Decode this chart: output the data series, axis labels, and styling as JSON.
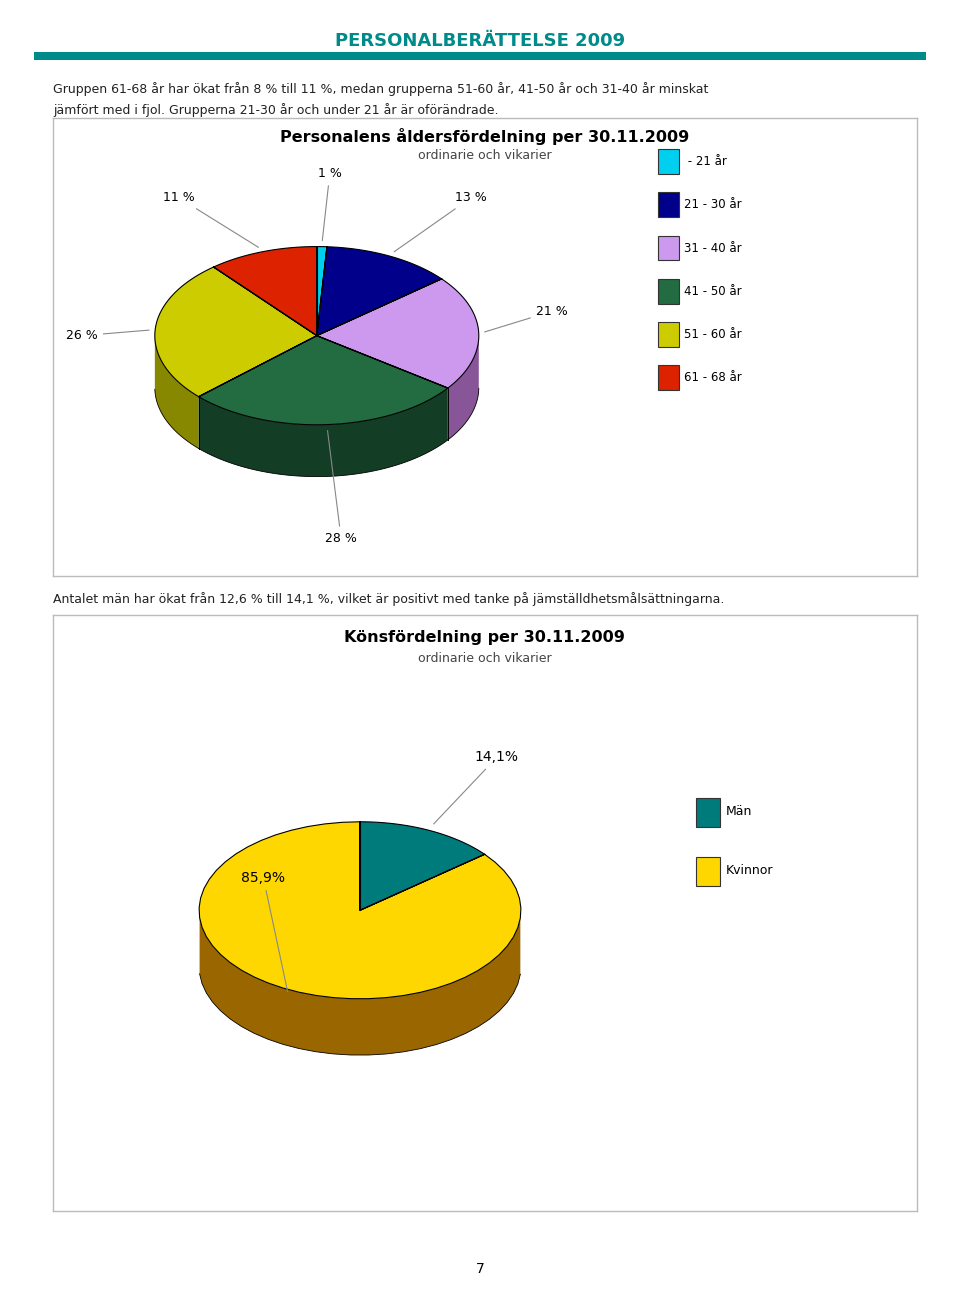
{
  "page_title": "PERSONALBERÄTTELSE 2009",
  "page_title_color": "#008B8B",
  "divider_color": "#008B8B",
  "text1_line1": "Gruppen 61-68 år har ökat från 8 % till 11 %, medan grupperna 51-60 år, 41-50 år och 31-40 år minskat",
  "text1_line2": "jämfört med i fjol. Grupperna 21-30 år och under 21 år är oförändrade.",
  "text2": "Antalet män har ökat från 12,6 % till 14,1 %, vilket är positivt med tanke på jämställdhetsmålsättningarna.",
  "footer_text": "7",
  "pie1_title": "Personalens åldersfördelning per 30.11.2009",
  "pie1_subtitle": "ordinarie och vikarier",
  "pie1_values": [
    1,
    13,
    21,
    28,
    26,
    11
  ],
  "pie1_labels": [
    "1 %",
    "13 %",
    "21 %",
    "28 %",
    "26 %",
    "11 %"
  ],
  "pie1_colors_top": [
    "#00CFEF",
    "#00008B",
    "#CC99EE",
    "#236B41",
    "#CCCC00",
    "#DD2200"
  ],
  "pie1_colors_side": [
    "#007799",
    "#000044",
    "#885599",
    "#143D25",
    "#888800",
    "#991100"
  ],
  "pie1_legend_labels": [
    " - 21 år",
    "21 - 30 år",
    "31 - 40 år",
    "41 - 50 år",
    "51 - 60 år",
    "61 - 68 år"
  ],
  "pie1_legend_colors": [
    "#00CFEF",
    "#00008B",
    "#CC99EE",
    "#236B41",
    "#CCCC00",
    "#DD2200"
  ],
  "pie2_title": "Könsfördelning per 30.11.2009",
  "pie2_subtitle": "ordinarie och vikarier",
  "pie2_values": [
    14.1,
    85.9
  ],
  "pie2_labels": [
    "14,1%",
    "85,9%"
  ],
  "pie2_colors_top": [
    "#007B7B",
    "#FFD700"
  ],
  "pie2_colors_side": [
    "#004444",
    "#996600"
  ],
  "pie2_legend_labels": [
    "Män",
    "Kvinnor"
  ],
  "pie2_legend_colors": [
    "#007B7B",
    "#FFD700"
  ],
  "box_bg": "#FFFFFF",
  "box_border": "#BBBBBB",
  "page_bg": "#FFFFFF"
}
